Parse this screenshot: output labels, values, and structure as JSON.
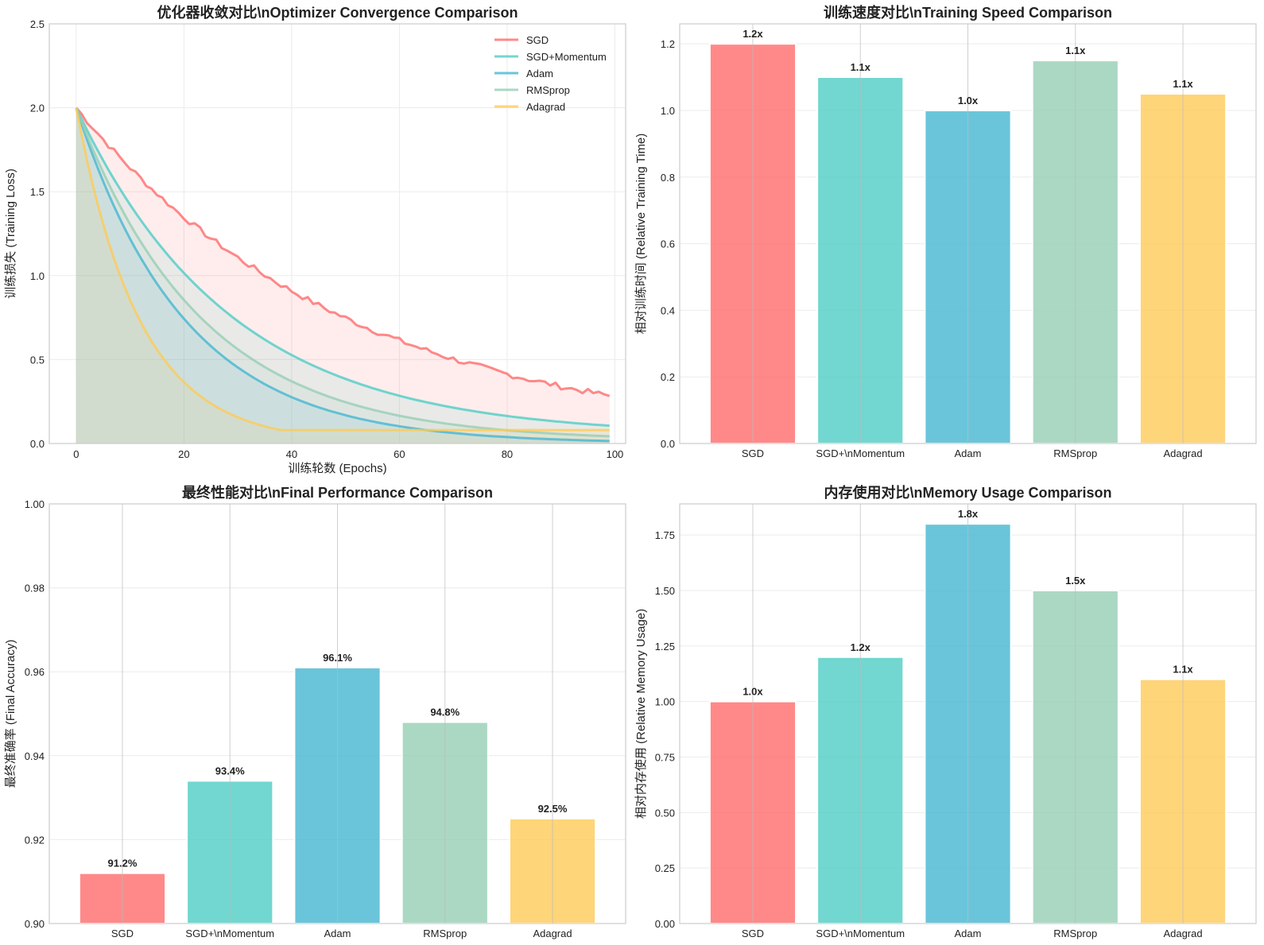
{
  "chart_data": [
    {
      "type": "line",
      "title": "优化器收敛对比\\nOptimizer Convergence Comparison",
      "xlabel": "训练轮数 (Epochs)",
      "ylabel": "训练损失 (Training Loss)",
      "xlim": [
        -5,
        102
      ],
      "ylim": [
        0,
        2.5
      ],
      "xticks": [
        "0",
        "20",
        "40",
        "60",
        "80",
        "100"
      ],
      "yticks": [
        "0.0",
        "0.5",
        "1.0",
        "1.5",
        "2.0",
        "2.5"
      ],
      "legend_position": "top-right",
      "start_loss": 2.0,
      "x": "epochs 0-99",
      "series": [
        {
          "name": "SGD",
          "color": "#ff6b6b",
          "final_loss": 0.27
        },
        {
          "name": "SGD+Momentum",
          "color": "#4ecdc4",
          "final_loss": 0.06
        },
        {
          "name": "Adam",
          "color": "#45b7d1",
          "final_loss": 0.015
        },
        {
          "name": "RMSprop",
          "color": "#96ceb4",
          "final_loss": 0.03
        },
        {
          "name": "Adagrad",
          "color": "#feca57",
          "final_loss": 0.08
        }
      ]
    },
    {
      "type": "bar",
      "title": "训练速度对比\\nTraining Speed Comparison",
      "xlabel": "",
      "ylabel": "相对训练时间 (Relative Training Time)",
      "categories": [
        "SGD",
        "SGD+\\nMomentum",
        "Adam",
        "RMSprop",
        "Adagrad"
      ],
      "values": [
        1.2,
        1.1,
        1.0,
        1.15,
        1.05
      ],
      "labels": [
        "1.2x",
        "1.1x",
        "1.0x",
        "1.1x",
        "1.1x"
      ],
      "ylim": [
        0,
        1.26
      ],
      "yticks": [
        "0.0",
        "0.2",
        "0.4",
        "0.6",
        "0.8",
        "1.0",
        "1.2"
      ]
    },
    {
      "type": "bar",
      "title": "最终性能对比\\nFinal Performance Comparison",
      "xlabel": "",
      "ylabel": "最终准确率 (Final Accuracy)",
      "categories": [
        "SGD",
        "SGD+\\nMomentum",
        "Adam",
        "RMSprop",
        "Adagrad"
      ],
      "values": [
        0.912,
        0.934,
        0.961,
        0.948,
        0.925
      ],
      "labels": [
        "91.2%",
        "93.4%",
        "96.1%",
        "94.8%",
        "92.5%"
      ],
      "ylim": [
        0.9,
        1.0
      ],
      "yticks": [
        "0.90",
        "0.92",
        "0.94",
        "0.96",
        "0.98",
        "1.00"
      ]
    },
    {
      "type": "bar",
      "title": "内存使用对比\\nMemory Usage Comparison",
      "xlabel": "",
      "ylabel": "相对内存使用 (Relative Memory Usage)",
      "categories": [
        "SGD",
        "SGD+\\nMomentum",
        "Adam",
        "RMSprop",
        "Adagrad"
      ],
      "values": [
        1.0,
        1.2,
        1.8,
        1.5,
        1.1
      ],
      "labels": [
        "1.0x",
        "1.2x",
        "1.8x",
        "1.5x",
        "1.1x"
      ],
      "ylim": [
        0,
        1.89
      ],
      "yticks": [
        "0.00",
        "0.25",
        "0.50",
        "0.75",
        "1.00",
        "1.25",
        "1.50",
        "1.75"
      ]
    }
  ]
}
